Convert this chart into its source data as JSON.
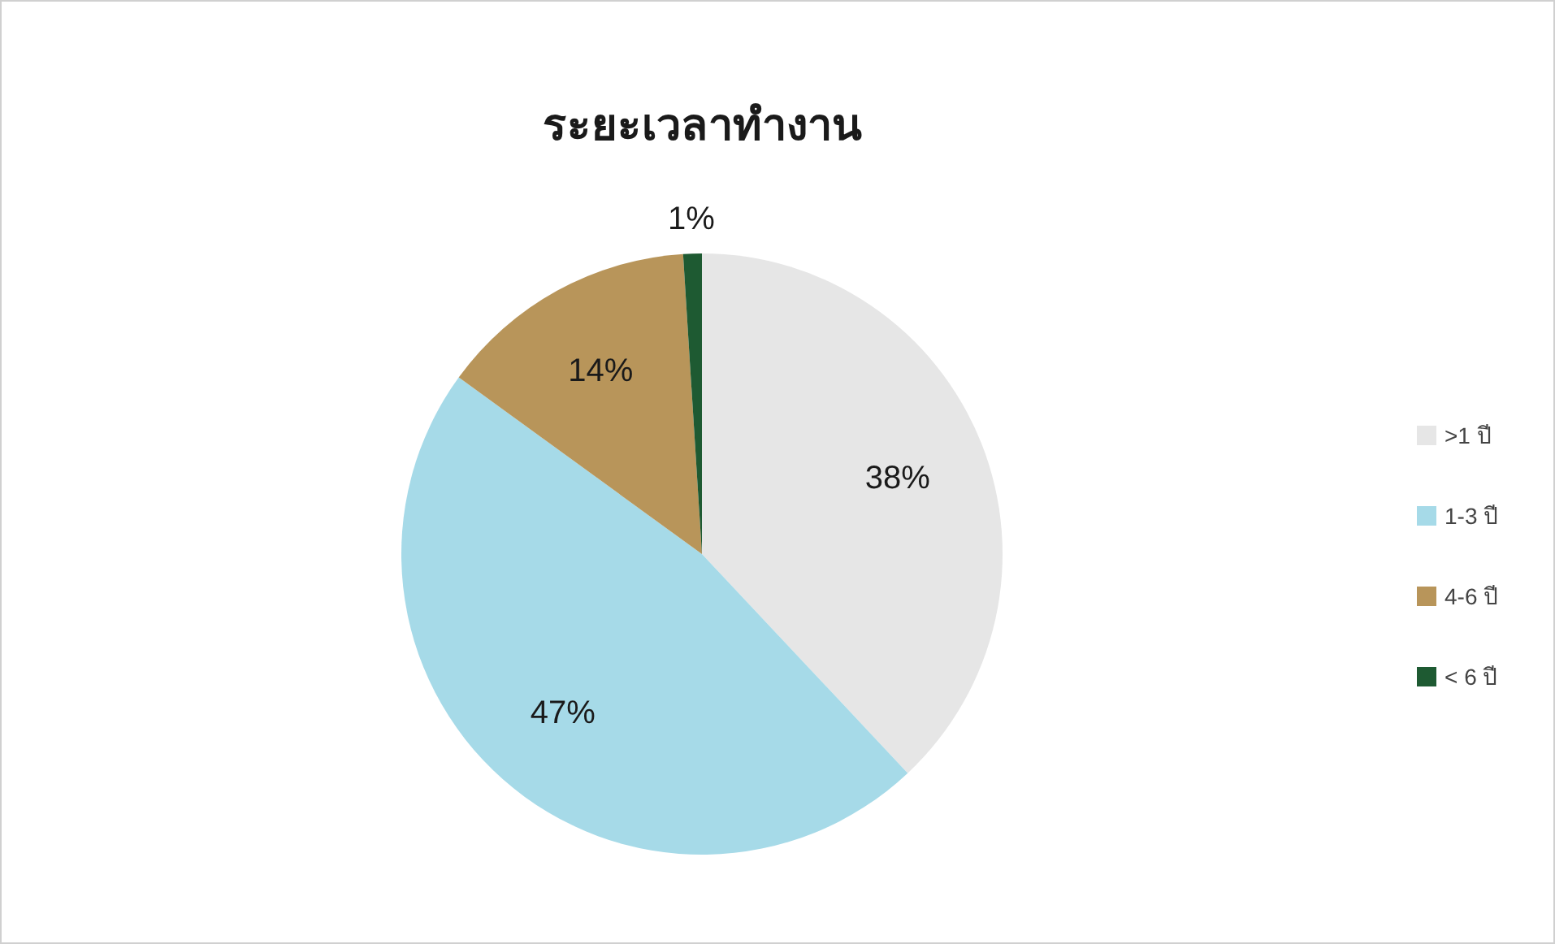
{
  "chart_data": {
    "type": "pie",
    "title": "ระยะเวลาทำงาน",
    "categories": [
      ">1 ปี",
      "1-3 ปี",
      "4-6 ปี",
      "< 6 ปี"
    ],
    "values": [
      38,
      47,
      14,
      1
    ],
    "value_labels": [
      "38%",
      "47%",
      "14%",
      "1%"
    ],
    "colors": [
      "#e6e6e6",
      "#a6dae8",
      "#b8955a",
      "#1e5a32"
    ],
    "legend": "right"
  }
}
